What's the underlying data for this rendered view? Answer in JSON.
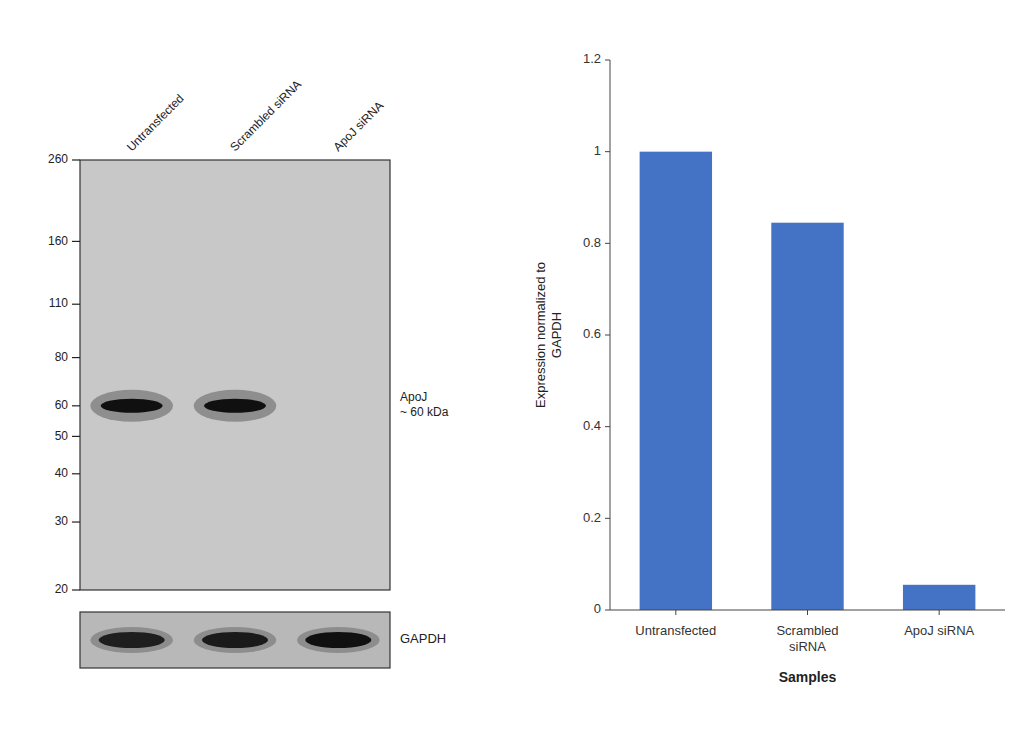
{
  "chart_data": [
    {
      "type": "blot",
      "categories": [
        "Untransfected",
        "Scrambled siRNA",
        "ApoJ siRNA"
      ],
      "log": "y",
      "ylim": [
        20,
        260
      ],
      "yticks": [
        260,
        160,
        110,
        80,
        60,
        50,
        40,
        30,
        20
      ],
      "series": [
        {
          "name": "ApoJ\n~ 60 kDa",
          "color": "#0a0a0a",
          "values": [
            60,
            60,
            null
          ]
        }
      ],
      "loading_control": {
        "name": "GAPDH",
        "color": "#0a0a0a",
        "values": [
          0.85,
          0.88,
          0.95
        ]
      }
    },
    {
      "type": "bar",
      "categories": [
        "Untransfected",
        "Scrambled\nsiRNA",
        "ApoJ siRNA"
      ],
      "values": [
        1.0,
        0.845,
        0.055
      ],
      "color": "#4472C4",
      "ylim": [
        0,
        1.2
      ],
      "yticks": [
        0,
        0.2,
        0.4,
        0.6,
        0.8,
        1,
        1.2
      ],
      "ylabel": "Expression normalized to\nGAPDH",
      "xlabel": "Samples",
      "grid": false
    }
  ]
}
